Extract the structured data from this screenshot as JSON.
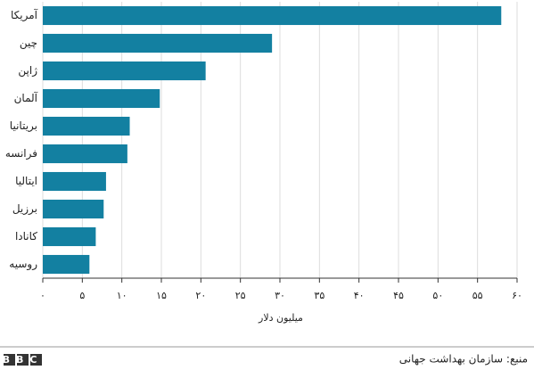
{
  "chart_data": {
    "type": "barh",
    "categories": [
      "آمریکا",
      "چین",
      "ژاپن",
      "آلمان",
      "بریتانیا",
      "فرانسه",
      "ایتالیا",
      "برزیل",
      "کانادا",
      "روسیه"
    ],
    "values": [
      58,
      29,
      20.6,
      14.8,
      11,
      10.7,
      8,
      7.7,
      6.7,
      5.9
    ],
    "color": "#1380a1",
    "xlim": [
      0,
      60
    ],
    "xticks": [
      {
        "value": 0,
        "label": "۰"
      },
      {
        "value": 5,
        "label": "۵"
      },
      {
        "value": 10,
        "label": "۱۰"
      },
      {
        "value": 15,
        "label": "۱۵"
      },
      {
        "value": 20,
        "label": "۲۰"
      },
      {
        "value": 25,
        "label": "۲۵"
      },
      {
        "value": 30,
        "label": "۳۰"
      },
      {
        "value": 35,
        "label": "۳۵"
      },
      {
        "value": 40,
        "label": "۴۰"
      },
      {
        "value": 45,
        "label": "۴۵"
      },
      {
        "value": 50,
        "label": "۵۰"
      },
      {
        "value": 55,
        "label": "۵۵"
      },
      {
        "value": 60,
        "label": "۶۰"
      }
    ],
    "grid": true,
    "x_label": "میلیون دلار",
    "source": "منبع: سازمان بهداشت جهانی",
    "logo": "BBC"
  }
}
